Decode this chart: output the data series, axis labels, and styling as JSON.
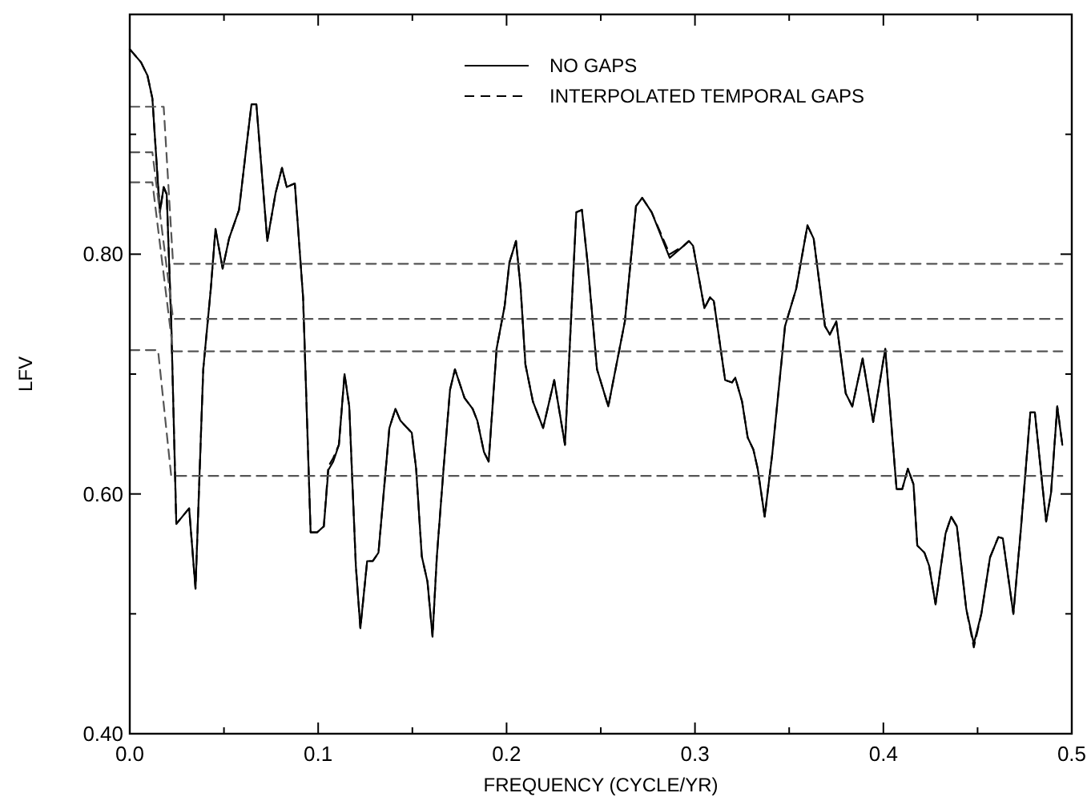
{
  "chart_data": {
    "type": "line",
    "xlabel": "FREQUENCY (CYCLE/YR)",
    "ylabel": "LFV",
    "x": [
      0,
      0.006,
      0.0094,
      0.012,
      0.0145,
      0.016,
      0.018,
      0.0196,
      0.022,
      0.0247,
      0.0315,
      0.0349,
      0.039,
      0.043,
      0.0455,
      0.0493,
      0.0527,
      0.058,
      0.062,
      0.0646,
      0.0672,
      0.073,
      0.0774,
      0.0808,
      0.0833,
      0.0876,
      0.092,
      0.096,
      0.0995,
      0.103,
      0.1054,
      0.108,
      0.111,
      0.114,
      0.1165,
      0.12,
      0.1224,
      0.126,
      0.129,
      0.132,
      0.1378,
      0.141,
      0.1437,
      0.1497,
      0.152,
      0.155,
      0.158,
      0.1607,
      0.163,
      0.1667,
      0.17,
      0.1726,
      0.1777,
      0.182,
      0.1845,
      0.188,
      0.1905,
      0.1947,
      0.199,
      0.2015,
      0.205,
      0.2075,
      0.21,
      0.214,
      0.2194,
      0.2253,
      0.231,
      0.237,
      0.24,
      0.243,
      0.248,
      0.254,
      0.2628,
      0.2687,
      0.272,
      0.277,
      0.2866,
      0.294,
      0.2968,
      0.299,
      0.305,
      0.308,
      0.31,
      0.316,
      0.3197,
      0.3214,
      0.325,
      0.328,
      0.331,
      0.3333,
      0.337,
      0.341,
      0.3478,
      0.3537,
      0.3597,
      0.363,
      0.369,
      0.3716,
      0.375,
      0.38,
      0.3835,
      0.389,
      0.3946,
      0.401,
      0.407,
      0.41,
      0.413,
      0.416,
      0.418,
      0.4218,
      0.4243,
      0.4277,
      0.433,
      0.436,
      0.439,
      0.444,
      0.448,
      0.452,
      0.4566,
      0.461,
      0.4634,
      0.469,
      0.473,
      0.478,
      0.4804,
      0.4864,
      0.489,
      0.4923,
      0.495
    ],
    "series": [
      {
        "name": "NO GAPS",
        "color": "#000000",
        "line_style": "solid",
        "values": [
          0.971,
          0.96,
          0.949,
          0.93,
          0.87,
          0.835,
          0.856,
          0.85,
          0.744,
          0.575,
          0.588,
          0.521,
          0.704,
          0.771,
          0.821,
          0.788,
          0.813,
          0.837,
          0.891,
          0.925,
          0.925,
          0.811,
          0.851,
          0.872,
          0.856,
          0.859,
          0.764,
          0.568,
          0.568,
          0.573,
          0.62,
          0.627,
          0.641,
          0.7,
          0.673,
          0.54,
          0.488,
          0.544,
          0.544,
          0.551,
          0.655,
          0.671,
          0.661,
          0.651,
          0.621,
          0.548,
          0.527,
          0.481,
          0.548,
          0.624,
          0.687,
          0.704,
          0.68,
          0.671,
          0.661,
          0.635,
          0.627,
          0.721,
          0.757,
          0.793,
          0.811,
          0.771,
          0.708,
          0.677,
          0.655,
          0.695,
          0.641,
          0.835,
          0.837,
          0.793,
          0.704,
          0.673,
          0.744,
          0.84,
          0.847,
          0.835,
          0.797,
          0.807,
          0.811,
          0.807,
          0.755,
          0.764,
          0.761,
          0.695,
          0.693,
          0.697,
          0.677,
          0.647,
          0.637,
          0.621,
          0.581,
          0.633,
          0.74,
          0.771,
          0.824,
          0.813,
          0.74,
          0.733,
          0.744,
          0.684,
          0.673,
          0.713,
          0.66,
          0.721,
          0.604,
          0.604,
          0.621,
          0.608,
          0.557,
          0.551,
          0.54,
          0.508,
          0.567,
          0.581,
          0.573,
          0.504,
          0.475,
          0.5,
          0.547,
          0.564,
          0.563,
          0.5,
          0.571,
          0.668,
          0.668,
          0.577,
          0.601,
          0.673,
          0.641
        ]
      },
      {
        "name": "INTERPOLATED TEMPORAL GAPS",
        "color": "#000000",
        "line_style": "dashed",
        "values": [
          0.971,
          0.96,
          0.949,
          0.93,
          0.87,
          0.835,
          0.856,
          0.85,
          0.744,
          0.575,
          0.588,
          0.521,
          0.704,
          0.771,
          0.821,
          0.788,
          0.813,
          0.837,
          0.891,
          0.925,
          0.925,
          0.811,
          0.851,
          0.872,
          0.856,
          0.859,
          0.764,
          0.568,
          0.568,
          0.573,
          0.623,
          0.63,
          0.641,
          0.7,
          0.673,
          0.54,
          0.488,
          0.544,
          0.544,
          0.551,
          0.655,
          0.671,
          0.661,
          0.651,
          0.621,
          0.548,
          0.527,
          0.481,
          0.548,
          0.624,
          0.687,
          0.704,
          0.68,
          0.671,
          0.661,
          0.635,
          0.627,
          0.721,
          0.757,
          0.793,
          0.811,
          0.771,
          0.708,
          0.677,
          0.655,
          0.695,
          0.641,
          0.835,
          0.837,
          0.793,
          0.704,
          0.673,
          0.744,
          0.84,
          0.847,
          0.835,
          0.8,
          0.807,
          0.811,
          0.807,
          0.755,
          0.764,
          0.761,
          0.695,
          0.693,
          0.697,
          0.677,
          0.647,
          0.637,
          0.621,
          0.581,
          0.633,
          0.74,
          0.771,
          0.824,
          0.813,
          0.74,
          0.733,
          0.744,
          0.684,
          0.673,
          0.713,
          0.66,
          0.721,
          0.604,
          0.604,
          0.621,
          0.608,
          0.557,
          0.551,
          0.54,
          0.508,
          0.567,
          0.581,
          0.573,
          0.504,
          0.472,
          0.5,
          0.547,
          0.564,
          0.563,
          0.5,
          0.571,
          0.668,
          0.668,
          0.577,
          0.601,
          0.673,
          0.641
        ]
      },
      {
        "color": "#555555",
        "line_style": "dashed",
        "x": [
          0,
          0.018,
          0.023,
          0.495
        ],
        "values": [
          0.923,
          0.923,
          0.792,
          0.792
        ]
      },
      {
        "color": "#555555",
        "line_style": "dashed",
        "x": [
          0,
          0.012,
          0.023,
          0.495
        ],
        "values": [
          0.885,
          0.885,
          0.746,
          0.746
        ]
      },
      {
        "color": "#555555",
        "line_style": "dashed",
        "x": [
          0,
          0.012,
          0.023,
          0.495
        ],
        "values": [
          0.86,
          0.86,
          0.719,
          0.719
        ]
      },
      {
        "color": "#555555",
        "line_style": "dashed",
        "x": [
          0,
          0.015,
          0.022,
          0.495
        ],
        "values": [
          0.72,
          0.72,
          0.615,
          0.615
        ]
      }
    ],
    "xlim": [
      0,
      0.5
    ],
    "xticks": [
      {
        "value": 0,
        "label": "0.0"
      },
      {
        "value": 0.05,
        "label": null
      },
      {
        "value": 0.1,
        "label": "0.1"
      },
      {
        "value": 0.15,
        "label": null
      },
      {
        "value": 0.2,
        "label": "0.2"
      },
      {
        "value": 0.25,
        "label": null
      },
      {
        "value": 0.3,
        "label": "0.3"
      },
      {
        "value": 0.35,
        "label": null
      },
      {
        "value": 0.4,
        "label": "0.4"
      },
      {
        "value": 0.45,
        "label": null
      },
      {
        "value": 0.5,
        "label": "0.5"
      }
    ],
    "ylim": [
      0.4,
      1.0
    ],
    "yticks": [
      {
        "value": 0.4,
        "label": "0.40"
      },
      {
        "value": 0.5,
        "label": null
      },
      {
        "value": 0.6,
        "label": "0.60"
      },
      {
        "value": 0.7,
        "label": null
      },
      {
        "value": 0.8,
        "label": "0.80"
      },
      {
        "value": 0.9,
        "label": null
      }
    ],
    "legend": "top right",
    "grid": false,
    "marker": "none"
  }
}
